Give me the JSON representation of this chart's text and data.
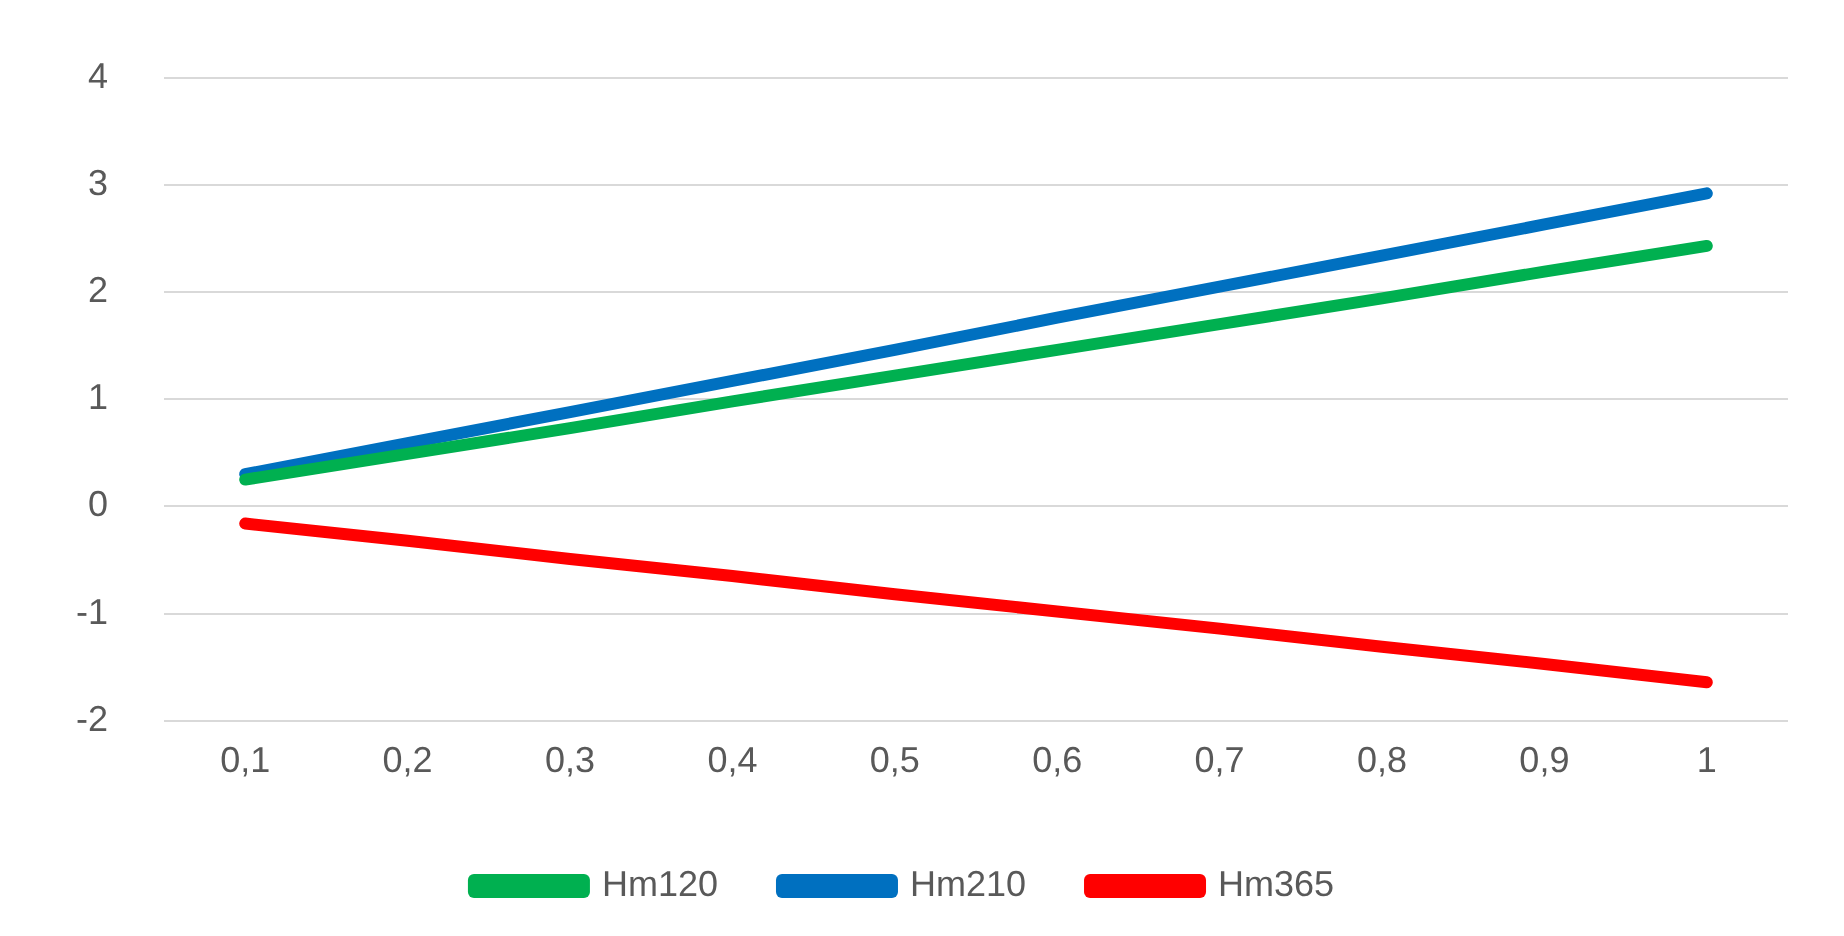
{
  "chart_data": {
    "type": "line",
    "categories": [
      "0,1",
      "0,2",
      "0,3",
      "0,4",
      "0,5",
      "0,6",
      "0,7",
      "0,8",
      "0,9",
      "1"
    ],
    "series": [
      {
        "name": "Hm120",
        "color": "#00b050",
        "values": [
          0.25,
          0.49,
          0.73,
          0.98,
          1.22,
          1.46,
          1.7,
          1.94,
          2.19,
          2.43
        ]
      },
      {
        "name": "Hm210",
        "color": "#0070c0",
        "values": [
          0.3,
          0.59,
          0.88,
          1.17,
          1.46,
          1.76,
          2.05,
          2.34,
          2.63,
          2.92
        ]
      },
      {
        "name": "Hm365",
        "color": "#ff0000",
        "values": [
          -0.16,
          -0.32,
          -0.49,
          -0.65,
          -0.82,
          -0.98,
          -1.14,
          -1.31,
          -1.47,
          -1.64
        ]
      }
    ],
    "ylim": [
      -2,
      4
    ],
    "yticks": [
      -2,
      -1,
      0,
      1,
      2,
      3,
      4
    ],
    "grid": "y",
    "legend": "bottom",
    "marker": "none",
    "line_style": "solid"
  }
}
